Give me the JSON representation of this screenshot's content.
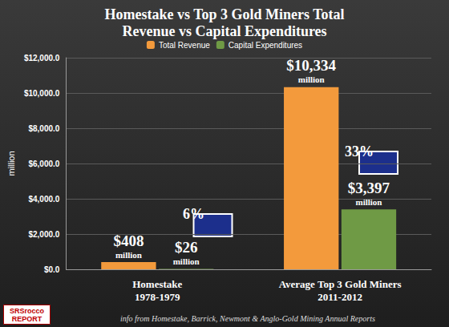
{
  "chart_data": {
    "type": "bar",
    "title": "Homestake vs Top 3 Gold Miners Total\nRevenue vs Capital Expenditures",
    "y_label": "million",
    "categories": [
      "Homestake\n1978-1979",
      "Average Top 3 Gold Miners\n2011-2012"
    ],
    "series": [
      {
        "name": "Total Revenue",
        "color": "#f39a3c",
        "values": [
          408,
          10334
        ],
        "value_labels": [
          "$408\nmillion",
          "$10,334\nmillion"
        ]
      },
      {
        "name": "Capital Expenditures",
        "color": "#6f9a45",
        "values": [
          26,
          3397
        ],
        "value_labels": [
          "$26\nmillion",
          "$3,397\nmillion"
        ]
      }
    ],
    "ylim": [
      0,
      12000
    ],
    "yticks": [
      {
        "value": 0,
        "label": "$0.0"
      },
      {
        "value": 2000,
        "label": "$2,000.0"
      },
      {
        "value": 4000,
        "label": "$4,000.0"
      },
      {
        "value": 6000,
        "label": "$6,000.0"
      },
      {
        "value": 8000,
        "label": "$8,000.0"
      },
      {
        "value": 10000,
        "label": "$10,000.0"
      },
      {
        "value": 12000,
        "label": "$12,000.0"
      }
    ],
    "grid": true,
    "legend": "top",
    "data_labels": true,
    "annotations": [
      "6%",
      "33%",
      "info from Homestake, Barrick, Newmont & Anglo-Gold Mining Annual Reports",
      "SRSrocco\nREPORT"
    ]
  }
}
